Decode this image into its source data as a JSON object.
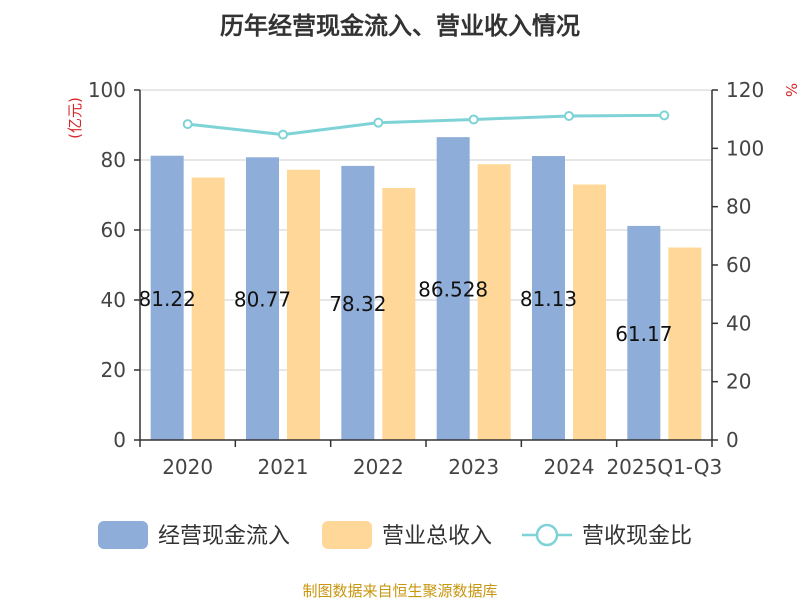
{
  "chart_data": {
    "type": "bar",
    "title": "历年经营现金流入、营业收入情况",
    "ylabel": "(亿元)",
    "y2label": "%",
    "categories": [
      "2020",
      "2021",
      "2022",
      "2023",
      "2024",
      "2025Q1-Q3"
    ],
    "ylim": [
      0,
      100
    ],
    "y2lim": [
      0,
      120
    ],
    "yticks": [
      "0",
      "20",
      "40",
      "60",
      "80",
      "100"
    ],
    "y2ticks": [
      "0",
      "20",
      "40",
      "60",
      "80",
      "100",
      "120"
    ],
    "grid": true,
    "legend_position": "bottom",
    "series": [
      {
        "name": "经营现金流入",
        "kind": "bar",
        "axis": "left",
        "color": "#8eadd9",
        "values": [
          81.22,
          80.77,
          78.32,
          86.53,
          81.13,
          61.17
        ],
        "labels": [
          "81.22",
          "80.77",
          "78.32",
          "86.528",
          "81.13",
          "61.17"
        ]
      },
      {
        "name": "营业总收入",
        "kind": "bar",
        "axis": "left",
        "color": "#ffd899",
        "values": [
          75.0,
          77.2,
          72.0,
          78.8,
          73.0,
          55.0
        ]
      },
      {
        "name": "营收现金比",
        "kind": "line",
        "axis": "right",
        "color": "#7ed3d6",
        "values": [
          108.3,
          104.7,
          108.8,
          109.9,
          111.1,
          111.3
        ]
      }
    ],
    "source": "制图数据来自恒生聚源数据库"
  }
}
